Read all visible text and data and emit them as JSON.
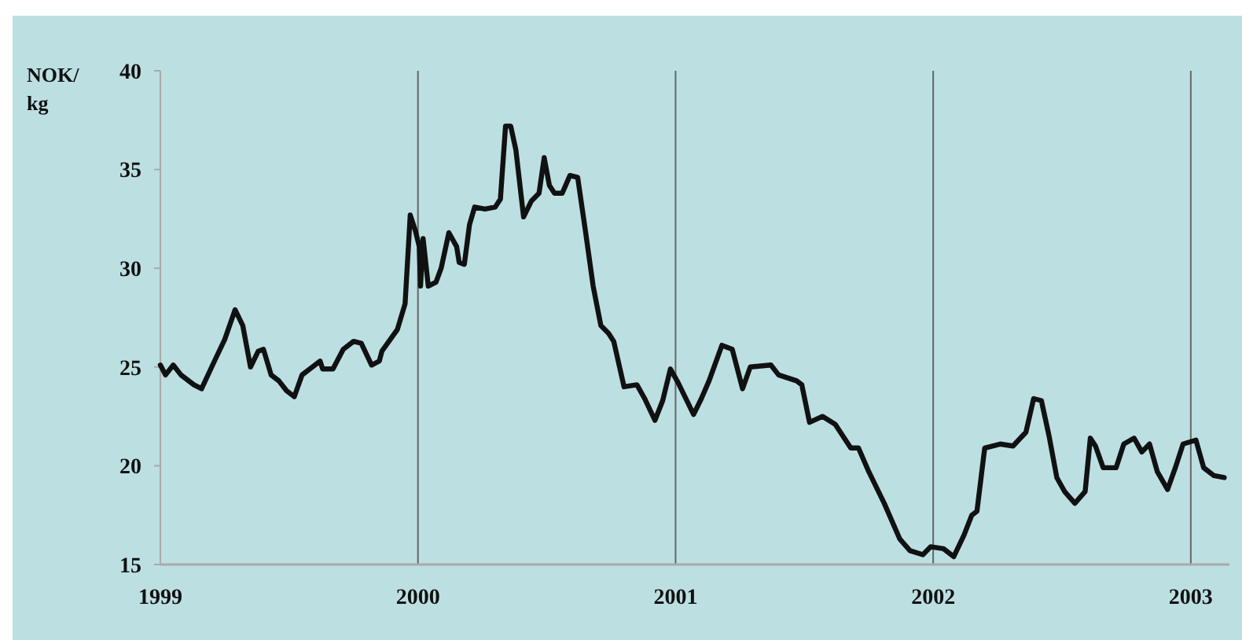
{
  "chart_data": {
    "type": "line",
    "ylabel": "NOK/\nkg",
    "grid": "x",
    "xlim": [
      1999,
      2003.15
    ],
    "ylim": [
      15,
      40
    ],
    "xticks": [
      1999,
      2000,
      2001,
      2002,
      2003
    ],
    "yticks": [
      15,
      20,
      25,
      30,
      35,
      40
    ],
    "series": [
      {
        "color": "#111111",
        "x": [
          1999,
          1999.02,
          1999.05,
          1999.08,
          1999.13,
          1999.16,
          1999.21,
          1999.25,
          1999.29,
          1999.32,
          1999.34,
          1999.35,
          1999.38,
          1999.4,
          1999.43,
          1999.46,
          1999.49,
          1999.52,
          1999.55,
          1999.62,
          1999.63,
          1999.67,
          1999.71,
          1999.75,
          1999.78,
          1999.82,
          1999.85,
          1999.86,
          1999.92,
          1999.95,
          1999.97,
          1999.99,
          2000.005,
          2000.01,
          2000.02,
          2000.04,
          2000.07,
          2000.09,
          2000.12,
          2000.15,
          2000.16,
          2000.18,
          2000.2,
          2000.22,
          2000.26,
          2000.3,
          2000.32,
          2000.34,
          2000.36,
          2000.38,
          2000.41,
          2000.44,
          2000.47,
          2000.49,
          2000.51,
          2000.53,
          2000.56,
          2000.59,
          2000.62,
          2000.65,
          2000.68,
          2000.71,
          2000.74,
          2000.76,
          2000.8,
          2000.85,
          2000.88,
          2000.92,
          2000.95,
          2000.98,
          2001.01,
          2001.07,
          2001.1,
          2001.13,
          2001.18,
          2001.22,
          2001.26,
          2001.29,
          2001.37,
          2001.4,
          2001.47,
          2001.49,
          2001.52,
          2001.57,
          2001.62,
          2001.68,
          2001.71,
          2001.75,
          2001.81,
          2001.87,
          2001.91,
          2001.96,
          2001.99,
          2002.04,
          2002.08,
          2002.12,
          2002.15,
          2002.17,
          2002.2,
          2002.26,
          2002.31,
          2002.36,
          2002.39,
          2002.42,
          2002.45,
          2002.48,
          2002.51,
          2002.55,
          2002.59,
          2002.61,
          2002.63,
          2002.66,
          2002.71,
          2002.74,
          2002.78,
          2002.81,
          2002.84,
          2002.87,
          2002.91,
          2002.94,
          2002.97,
          2003.02,
          2003.05,
          2003.09,
          2003.13
        ],
        "values": [
          25.1,
          24.6,
          25.1,
          24.6,
          24.1,
          23.9,
          25.3,
          26.4,
          27.9,
          27.1,
          25.7,
          25.0,
          25.8,
          25.9,
          24.6,
          24.3,
          23.8,
          23.5,
          24.6,
          25.3,
          24.9,
          24.9,
          25.9,
          26.3,
          26.2,
          25.1,
          25.3,
          25.8,
          26.9,
          28.2,
          32.7,
          31.9,
          31.1,
          29.1,
          31.5,
          29.1,
          29.3,
          30.0,
          31.8,
          31.1,
          30.3,
          30.2,
          32.2,
          33.1,
          33.0,
          33.1,
          33.5,
          37.2,
          37.2,
          36.0,
          32.6,
          33.4,
          33.8,
          35.6,
          34.2,
          33.8,
          33.8,
          34.7,
          34.6,
          31.9,
          29.1,
          27.1,
          26.7,
          26.3,
          24.0,
          24.1,
          23.4,
          22.3,
          23.3,
          24.9,
          24.2,
          22.6,
          23.4,
          24.3,
          26.1,
          25.9,
          23.9,
          25.0,
          25.1,
          24.6,
          24.3,
          24.1,
          22.2,
          22.5,
          22.1,
          20.9,
          20.9,
          19.7,
          18.1,
          16.3,
          15.7,
          15.5,
          15.9,
          15.8,
          15.4,
          16.5,
          17.5,
          17.7,
          20.9,
          21.1,
          21.0,
          21.7,
          23.4,
          23.3,
          21.5,
          19.4,
          18.7,
          18.1,
          18.7,
          21.4,
          21.0,
          19.9,
          19.9,
          21.1,
          21.4,
          20.7,
          21.1,
          19.7,
          18.8,
          19.9,
          21.1,
          21.3,
          19.9,
          19.5,
          19.4
        ]
      }
    ]
  }
}
